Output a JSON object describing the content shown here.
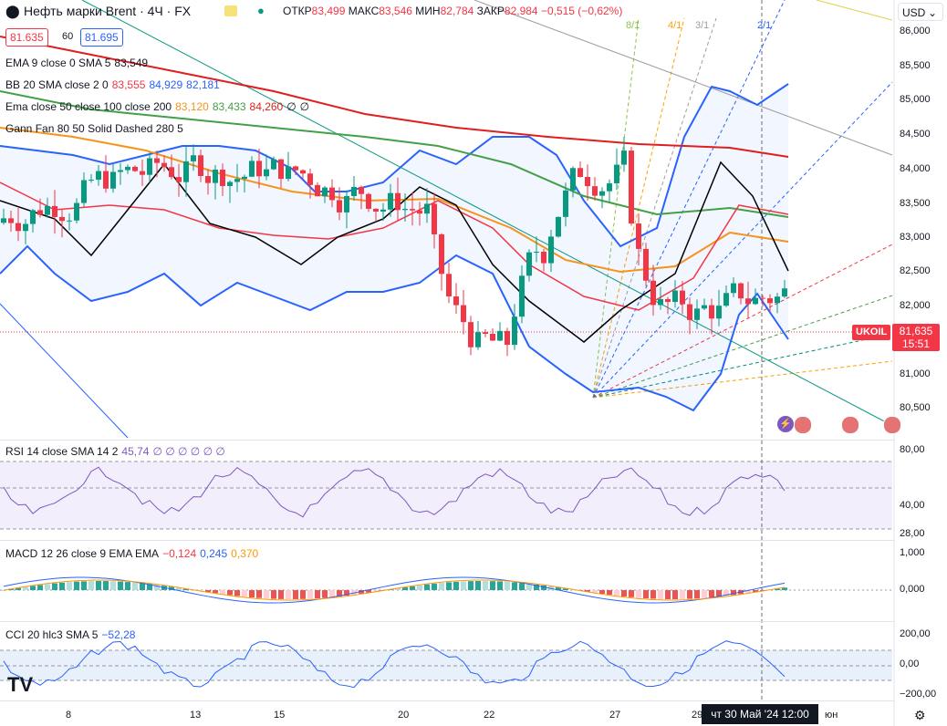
{
  "header": {
    "symbol": "Нефть марки Brent · 4Ч · FX",
    "open_label": "ОТКР",
    "open_value": "83,499",
    "high_label": "МАКС",
    "high_value": "83,546",
    "low_label": "МИН",
    "low_value": "82,784",
    "close_label": "ЗАКР",
    "close_value": "82,984",
    "change": "−0,515 (−0,62%)",
    "bid": "81.635",
    "spread": "60",
    "ask": "81.695",
    "currency": "USD"
  },
  "indicators": {
    "ema": {
      "title": "EMA 9 close 0 SMA 5",
      "v1": "83,549"
    },
    "bb": {
      "title": "BB 20 SMA close 2 0",
      "v1": "83,555",
      "v2": "84,929",
      "v3": "82,181"
    },
    "ema3": {
      "title": "Ema close 50 close 100 close 200",
      "v1": "83,120",
      "v2": "83,433",
      "v3": "84,260",
      "v4": "∅",
      "v5": "∅"
    },
    "gann": {
      "title": "Gann Fan 80 50 Solid Dashed 280 5"
    },
    "rsi": {
      "title": "RSI 14 close SMA 14 2",
      "v1": "45,74",
      "rest": "∅ ∅ ∅ ∅ ∅ ∅"
    },
    "macd": {
      "title": "MACD 12 26 close 9 EMA EMA",
      "v1": "−0,124",
      "v2": "0,245",
      "v3": "0,370"
    },
    "cci": {
      "title": "CCI 20 hlc3 SMA 5",
      "v1": "−52,28"
    }
  },
  "gann_labels": [
    "8/1",
    "4/1",
    "3/1",
    "2/1"
  ],
  "price_axis": [
    "86,000",
    "85,500",
    "85,000",
    "84,500",
    "84,000",
    "83,500",
    "83,000",
    "82,500",
    "82,000",
    "81,500",
    "81,000",
    "80,500"
  ],
  "rsi_axis": [
    "80,00",
    "40,00",
    "28,00"
  ],
  "macd_axis": [
    "1,000",
    "0,000"
  ],
  "cci_axis": [
    "200,00",
    "0,00",
    "−200,00"
  ],
  "time_axis": [
    "8",
    "13",
    "15",
    "20",
    "22",
    "27",
    "29",
    "юн"
  ],
  "crosshair_time": "чт 30 Май '24   12:00",
  "last_price": {
    "symbol": "UKOIL",
    "price": "81,635",
    "countdown": "15:51"
  },
  "colors": {
    "up": "#089981",
    "down": "#f23645",
    "bb": "#2962ff",
    "ema9": "#000000",
    "ema50": "#f7931a",
    "ema100": "#43a047",
    "ema200": "#e01e1e",
    "rsi": "#7e57c2",
    "macd": "#2962ff",
    "signal": "#ff9800"
  }
}
